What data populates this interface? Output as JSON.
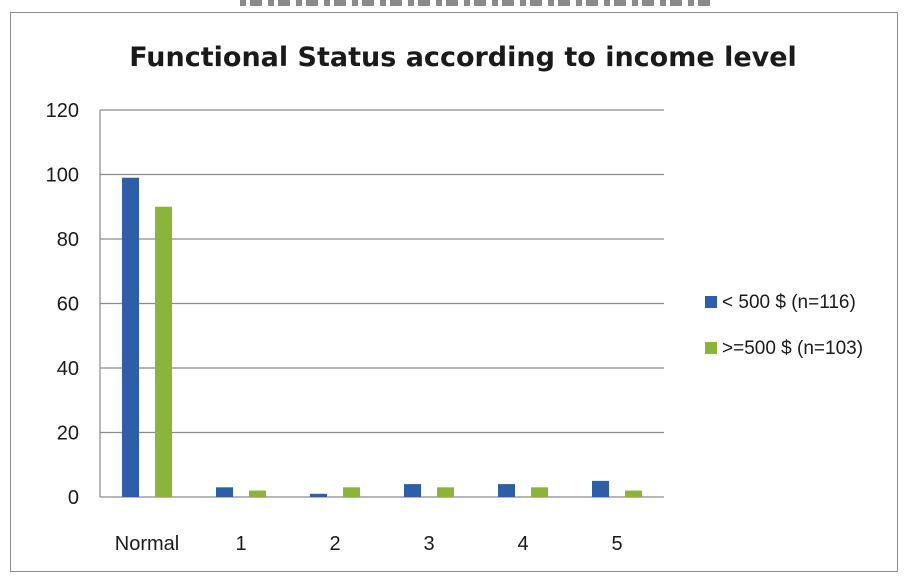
{
  "chart_data": {
    "type": "bar",
    "title": "Functional Status according to income level",
    "xlabel": "",
    "ylabel": "",
    "categories": [
      "Normal",
      "1",
      "2",
      "3",
      "4",
      "5"
    ],
    "series": [
      {
        "name": "< 500 $  (n=116)",
        "values": [
          99,
          3,
          1,
          4,
          4,
          5
        ],
        "color": "#2e5ea8"
      },
      {
        "name": ">=500 $ (n=103)",
        "values": [
          90,
          2,
          3,
          3,
          3,
          2
        ],
        "color": "#8db43a"
      }
    ],
    "ylim": [
      0,
      120
    ],
    "yticks": [
      0,
      20,
      40,
      60,
      80,
      100,
      120
    ],
    "grid": true,
    "legend_position": "right"
  }
}
